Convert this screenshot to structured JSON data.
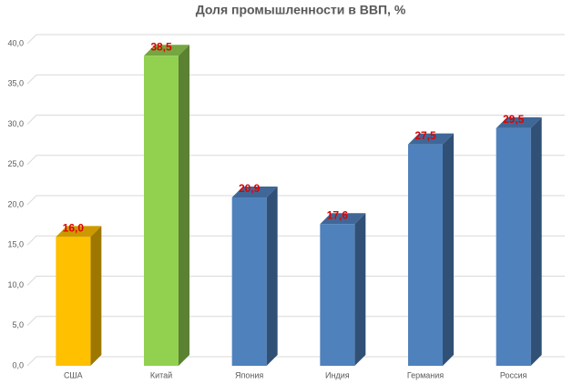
{
  "chart_data": {
    "type": "bar3d",
    "title": "Доля промышленности в ВВП, %",
    "categories": [
      "США",
      "Китай",
      "Япония",
      "Индия",
      "Германия",
      "Россия"
    ],
    "values": [
      16.0,
      38.5,
      20.9,
      17.6,
      27.5,
      29.5
    ],
    "value_labels": [
      "16,0",
      "38,5",
      "20,9",
      "17,6",
      "27,5",
      "29,5"
    ],
    "colors": [
      "#ffc000",
      "#92d050",
      "#4f81bd",
      "#4f81bd",
      "#4f81bd",
      "#4f81bd"
    ],
    "ylim": [
      0,
      40
    ],
    "yticks": [
      {
        "value": 0,
        "label": "0,0"
      },
      {
        "value": 5,
        "label": "5,0"
      },
      {
        "value": 10,
        "label": "10,0"
      },
      {
        "value": 15,
        "label": "15,0"
      },
      {
        "value": 20,
        "label": "20,0"
      },
      {
        "value": 25,
        "label": "25,0"
      },
      {
        "value": 30,
        "label": "30,0"
      },
      {
        "value": 35,
        "label": "35,0"
      },
      {
        "value": 40,
        "label": "40,0"
      }
    ],
    "grid": true
  }
}
